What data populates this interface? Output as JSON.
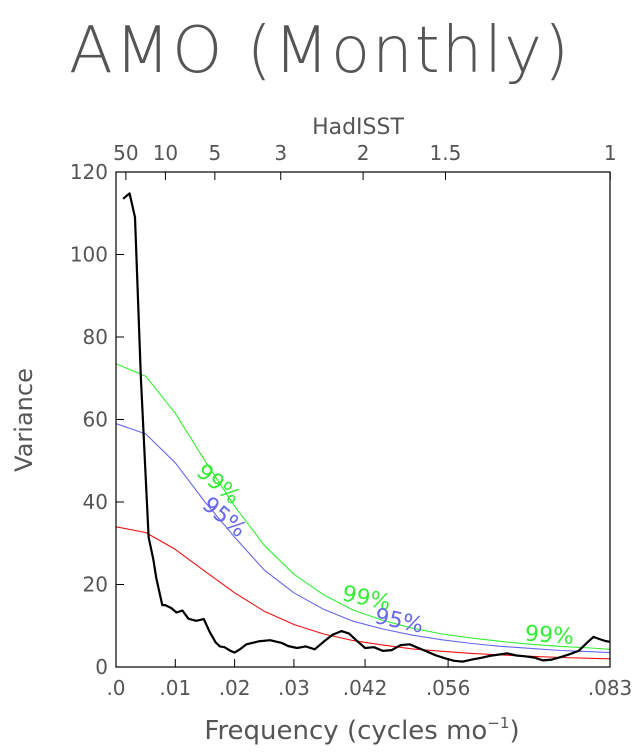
{
  "chart_data": {
    "type": "line",
    "title": "AMO (Monthly)",
    "top_axis_label": "HadISST",
    "xlabel_prefix": "Frequency (cycles mo",
    "xlabel_sup": "−1",
    "xlabel_suffix": ")",
    "ylabel": "Variance",
    "xlim": [
      0,
      0.0833
    ],
    "ylim": [
      0,
      120
    ],
    "x_ticks": [
      {
        "value": 0,
        "label": ".0"
      },
      {
        "value": 0.01,
        "label": ".01"
      },
      {
        "value": 0.02,
        "label": ".02"
      },
      {
        "value": 0.03,
        "label": ".03"
      },
      {
        "value": 0.042,
        "label": ".042"
      },
      {
        "value": 0.056,
        "label": ".056"
      },
      {
        "value": 0.0833,
        "label": ".083"
      }
    ],
    "y_ticks": [
      {
        "value": 0,
        "label": "0"
      },
      {
        "value": 20,
        "label": "20"
      },
      {
        "value": 40,
        "label": "40"
      },
      {
        "value": 60,
        "label": "60"
      },
      {
        "value": 80,
        "label": "80"
      },
      {
        "value": 100,
        "label": "100"
      },
      {
        "value": 120,
        "label": "120"
      }
    ],
    "top_ticks": [
      {
        "period": 50,
        "label": "50"
      },
      {
        "period": 10,
        "label": "10"
      },
      {
        "period": 5,
        "label": "5"
      },
      {
        "period": 3,
        "label": "3"
      },
      {
        "period": 2,
        "label": "2"
      },
      {
        "period": 1.5,
        "label": "1.5"
      },
      {
        "period": 1,
        "label": "1"
      }
    ],
    "series": [
      {
        "color": "#000000",
        "x": [
          0.0012,
          0.0023,
          0.0025,
          0.0032,
          0.0042,
          0.0055,
          0.0063,
          0.0068,
          0.0078,
          0.0083,
          0.0093,
          0.0102,
          0.0112,
          0.0122,
          0.0135,
          0.0148,
          0.0158,
          0.0168,
          0.0175,
          0.0183,
          0.0192,
          0.02,
          0.021,
          0.022,
          0.024,
          0.026,
          0.028,
          0.029,
          0.0305,
          0.032,
          0.0335,
          0.035,
          0.0365,
          0.038,
          0.0393,
          0.0405,
          0.042,
          0.0435,
          0.045,
          0.0465,
          0.048,
          0.0495,
          0.051,
          0.0525,
          0.054,
          0.0555,
          0.057,
          0.0585,
          0.06,
          0.0615,
          0.063,
          0.0645,
          0.066,
          0.0675,
          0.069,
          0.0705,
          0.072,
          0.0735,
          0.075,
          0.0765,
          0.078,
          0.0795,
          0.0805,
          0.0815,
          0.0825,
          0.0833
        ],
        "values": [
          113.5,
          114.8,
          113.5,
          109,
          70,
          31.5,
          26,
          21.5,
          15,
          15,
          14.3,
          13.2,
          13.7,
          11.7,
          11.2,
          11.6,
          8.5,
          6,
          5,
          4.8,
          4,
          3.5,
          4.4,
          5.5,
          6.2,
          6.5,
          5.8,
          5.1,
          4.6,
          5,
          4.3,
          6.1,
          7.8,
          8.7,
          8.1,
          6.5,
          4.6,
          4.8,
          3.9,
          4.1,
          5.3,
          5.5,
          4.6,
          3.7,
          2.8,
          2.1,
          1.5,
          1.3,
          1.8,
          2.2,
          2.7,
          3,
          3.3,
          2.8,
          2.6,
          2.3,
          1.6,
          1.8,
          2.4,
          3.1,
          3.9,
          6,
          7.3,
          6.8,
          6.3,
          6.1
        ]
      },
      {
        "color": "#ee1111",
        "x": [
          0,
          0.005,
          0.01,
          0.015,
          0.02,
          0.025,
          0.03,
          0.035,
          0.04,
          0.045,
          0.05,
          0.055,
          0.06,
          0.065,
          0.07,
          0.075,
          0.08,
          0.0833
        ],
        "values": [
          34,
          32.6,
          28.5,
          23.2,
          18,
          13.5,
          10.3,
          8,
          6.4,
          5.3,
          4.4,
          3.8,
          3.3,
          2.9,
          2.6,
          2.3,
          2.1,
          2
        ]
      },
      {
        "color": "#6666ee",
        "label": "95%",
        "x": [
          0,
          0.005,
          0.01,
          0.015,
          0.02,
          0.025,
          0.03,
          0.035,
          0.04,
          0.045,
          0.05,
          0.055,
          0.06,
          0.065,
          0.07,
          0.075,
          0.08,
          0.0833
        ],
        "values": [
          59,
          56.5,
          49.5,
          40,
          31.5,
          23.5,
          18,
          14,
          11.1,
          9.2,
          7.7,
          6.6,
          5.7,
          5,
          4.5,
          4,
          3.7,
          3.5
        ]
      },
      {
        "color": "#33ee33",
        "label": "99%",
        "x": [
          0,
          0.005,
          0.01,
          0.015,
          0.02,
          0.025,
          0.03,
          0.035,
          0.04,
          0.045,
          0.05,
          0.055,
          0.06,
          0.065,
          0.07,
          0.075,
          0.08,
          0.0833
        ],
        "values": [
          73.5,
          70.5,
          61.5,
          50,
          39,
          29.5,
          22.5,
          17.5,
          13.8,
          11.3,
          9.4,
          8,
          7,
          6.2,
          5.5,
          5,
          4.6,
          4.3
        ]
      }
    ],
    "curve_labels": [
      {
        "text": "99%",
        "color": "#33ee33",
        "x": 0.0165,
        "y": 43,
        "angle": 40
      },
      {
        "text": "95%",
        "color": "#6666ee",
        "x": 0.0175,
        "y": 35,
        "angle": 40
      },
      {
        "text": "99%",
        "color": "#33ee33",
        "x": 0.042,
        "y": 15,
        "angle": 12
      },
      {
        "text": "95%",
        "color": "#6666ee",
        "x": 0.0475,
        "y": 9.5,
        "angle": 12
      },
      {
        "text": "99%",
        "color": "#33ee33",
        "x": 0.073,
        "y": 6,
        "angle": 4
      }
    ]
  }
}
